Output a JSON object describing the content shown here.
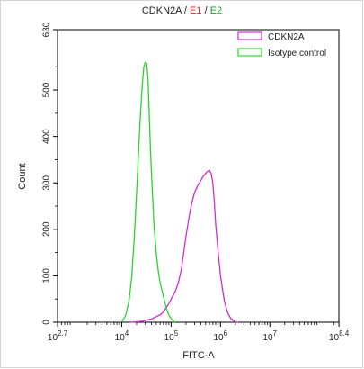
{
  "chart_data": {
    "type": "line",
    "title_parts": [
      {
        "text": "CDKN2A",
        "color": "#222222"
      },
      {
        "text": " / ",
        "color": "#222222"
      },
      {
        "text": "E1",
        "color": "#e0242a"
      },
      {
        "text": " / ",
        "color": "#222222"
      },
      {
        "text": "E2",
        "color": "#1f9a2b"
      }
    ],
    "xlabel": "FITC-A",
    "ylabel": "Count",
    "x_scale": "log",
    "xlim": [
      500,
      250000000
    ],
    "ylim": [
      0,
      630
    ],
    "x_ticks": [
      {
        "base": "10",
        "exp": "2.7"
      },
      {
        "base": "10",
        "exp": "4"
      },
      {
        "base": "10",
        "exp": "5"
      },
      {
        "base": "10",
        "exp": "6"
      },
      {
        "base": "10",
        "exp": "7"
      },
      {
        "base": "10",
        "exp": "8.4"
      }
    ],
    "y_ticks": [
      "0",
      "100",
      "200",
      "300",
      "400",
      "500",
      "630"
    ],
    "legend_position": "top-right",
    "series": [
      {
        "name": "CDKN2A",
        "color": "#d42bd4",
        "x": [
          15000,
          20000,
          25000,
          30000,
          40000,
          50000,
          60000,
          70000,
          80000,
          90000,
          100000,
          120000,
          140000,
          160000,
          180000,
          200000,
          230000,
          260000,
          300000,
          350000,
          400000,
          450000,
          500000,
          550000,
          600000,
          650000,
          700000,
          750000,
          800000,
          900000,
          1000000,
          1200000,
          1400000,
          1600000,
          1800000,
          2000000,
          2300000
        ],
        "y": [
          0,
          1,
          2,
          4,
          7,
          12,
          16,
          22,
          32,
          40,
          50,
          65,
          85,
          112,
          150,
          185,
          225,
          255,
          280,
          295,
          305,
          315,
          320,
          325,
          327,
          320,
          300,
          260,
          210,
          150,
          100,
          45,
          20,
          9,
          4,
          1,
          0
        ]
      },
      {
        "name": "Isotype control",
        "color": "#2bd42b",
        "x": [
          10000,
          12000,
          14000,
          16000,
          18000,
          20000,
          22000,
          24000,
          26000,
          28000,
          30000,
          32000,
          34000,
          36000,
          38000,
          40000,
          45000,
          50000,
          55000,
          60000,
          70000,
          80000,
          90000,
          100000,
          110000,
          120000
        ],
        "y": [
          0,
          15,
          45,
          100,
          185,
          280,
          370,
          450,
          510,
          550,
          560,
          557,
          525,
          450,
          380,
          320,
          210,
          150,
          110,
          85,
          55,
          30,
          15,
          8,
          3,
          0
        ]
      }
    ]
  }
}
